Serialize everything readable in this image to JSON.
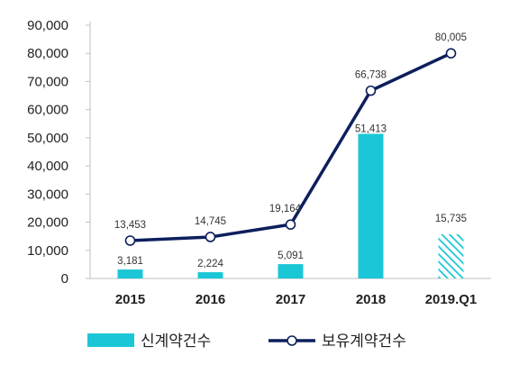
{
  "chart_data": {
    "type": "bar",
    "title": "",
    "xlabel": "",
    "ylabel": "",
    "categories": [
      "2015",
      "2016",
      "2017",
      "2018",
      "2019.Q1"
    ],
    "ylim": [
      0,
      90000
    ],
    "yticks": [
      "0",
      "10,000",
      "20,000",
      "30,000",
      "40,000",
      "50,000",
      "60,000",
      "70,000",
      "80,000",
      "90,000"
    ],
    "grid": false,
    "legend_position": "bottom",
    "series": [
      {
        "name": "신계약건수",
        "type": "bar",
        "color": "#1BC7D7",
        "values": [
          3181,
          2224,
          5091,
          51413,
          15735
        ],
        "labels": [
          "3,181",
          "2,224",
          "5,091",
          "51,413",
          "15,735"
        ],
        "hatched_last": true
      },
      {
        "name": "보유계약건수",
        "type": "line",
        "color": "#0D1F5C",
        "marker": "open-circle",
        "values": [
          13453,
          14745,
          19164,
          66738,
          80005
        ],
        "labels": [
          "13,453",
          "14,745",
          "19,164",
          "66,738",
          "80,005"
        ]
      }
    ]
  }
}
